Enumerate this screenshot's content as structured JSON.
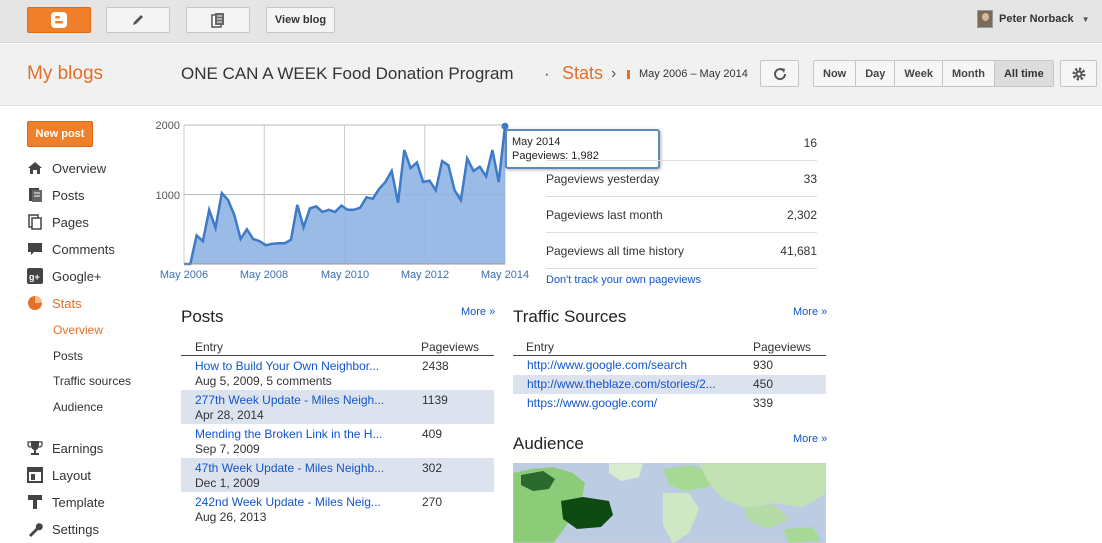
{
  "topbar": {
    "view_blog": "View blog",
    "user_name": "Peter Norback"
  },
  "header": {
    "my_blogs": "My blogs",
    "blog_title": "ONE CAN A WEEK Food Donation Program",
    "separator": "·",
    "section": "Stats",
    "arrow": "›",
    "date_range": "May 2006 – May 2014",
    "periods": [
      "Now",
      "Day",
      "Week",
      "Month",
      "All time"
    ],
    "active_period": "All time"
  },
  "sidebar": {
    "new_post": "New post",
    "items": [
      {
        "label": "Overview",
        "icon": "home-icon"
      },
      {
        "label": "Posts",
        "icon": "posts-icon"
      },
      {
        "label": "Pages",
        "icon": "pages-icon"
      },
      {
        "label": "Comments",
        "icon": "comments-icon"
      },
      {
        "label": "Google+",
        "icon": "google-plus-icon"
      },
      {
        "label": "Stats",
        "icon": "stats-icon"
      }
    ],
    "stats_sub": [
      "Overview",
      "Posts",
      "Traffic sources",
      "Audience"
    ],
    "items2": [
      {
        "label": "Earnings",
        "icon": "trophy-icon"
      },
      {
        "label": "Layout",
        "icon": "layout-icon"
      },
      {
        "label": "Template",
        "icon": "template-icon"
      },
      {
        "label": "Settings",
        "icon": "wrench-icon"
      }
    ]
  },
  "chart_data": {
    "type": "area",
    "title": "Pageviews",
    "xlabel": "",
    "ylabel": "",
    "x_ticks": [
      "May 2006",
      "May 2008",
      "May 2010",
      "May 2012",
      "May 2014"
    ],
    "y_ticks": [
      "2000",
      "1000"
    ],
    "ylim": [
      0,
      2000
    ],
    "values": [
      0,
      0,
      410,
      330,
      780,
      520,
      1020,
      920,
      700,
      360,
      500,
      360,
      330,
      270,
      290,
      300,
      300,
      350,
      850,
      530,
      800,
      830,
      750,
      780,
      750,
      840,
      780,
      780,
      810,
      960,
      940,
      1080,
      1180,
      1340,
      880,
      1640,
      1380,
      1460,
      1180,
      1200,
      1060,
      1480,
      1420,
      1060,
      920,
      1520,
      1340,
      1400,
      1260,
      1640,
      1180,
      1982
    ],
    "tooltip": {
      "title": "May 2014",
      "label": "Pageviews: 1,982"
    },
    "color": "#3d7ac8"
  },
  "stats": [
    {
      "label": "",
      "value": "16"
    },
    {
      "label": "Pageviews yesterday",
      "value": "33"
    },
    {
      "label": "Pageviews last month",
      "value": "2,302"
    },
    {
      "label": "Pageviews all time history",
      "value": "41,681"
    }
  ],
  "dont_track": "Don't track your own pageviews",
  "posts": {
    "title": "Posts",
    "more": "More »",
    "col_entry": "Entry",
    "col_pageviews": "Pageviews",
    "rows": [
      {
        "title": "How to Build Your Own Neighbor...",
        "sub": "Aug 5, 2009, 5 comments",
        "pv": "2438"
      },
      {
        "title": "277th Week Update - Miles Neigh...",
        "sub": "Apr 28, 2014",
        "pv": "1139"
      },
      {
        "title": "Mending the Broken Link in the H...",
        "sub": "Sep 7, 2009",
        "pv": "409"
      },
      {
        "title": "47th Week Update - Miles Neighb...",
        "sub": "Dec 1, 2009",
        "pv": "302"
      },
      {
        "title": "242nd Week Update - Miles Neig...",
        "sub": "Aug 26, 2013",
        "pv": "270"
      }
    ]
  },
  "traffic": {
    "title": "Traffic Sources",
    "more": "More »",
    "col_entry": "Entry",
    "col_pageviews": "Pageviews",
    "rows": [
      {
        "url": "http://www.google.com/search",
        "pv": "930"
      },
      {
        "url": "http://www.theblaze.com/stories/2...",
        "pv": "450"
      },
      {
        "url": "https://www.google.com/",
        "pv": "339"
      }
    ]
  },
  "audience": {
    "title": "Audience",
    "more": "More »"
  },
  "colors": {
    "accent": "#e2702a",
    "link": "#1155cc",
    "alt_row": "#dde3ee"
  }
}
